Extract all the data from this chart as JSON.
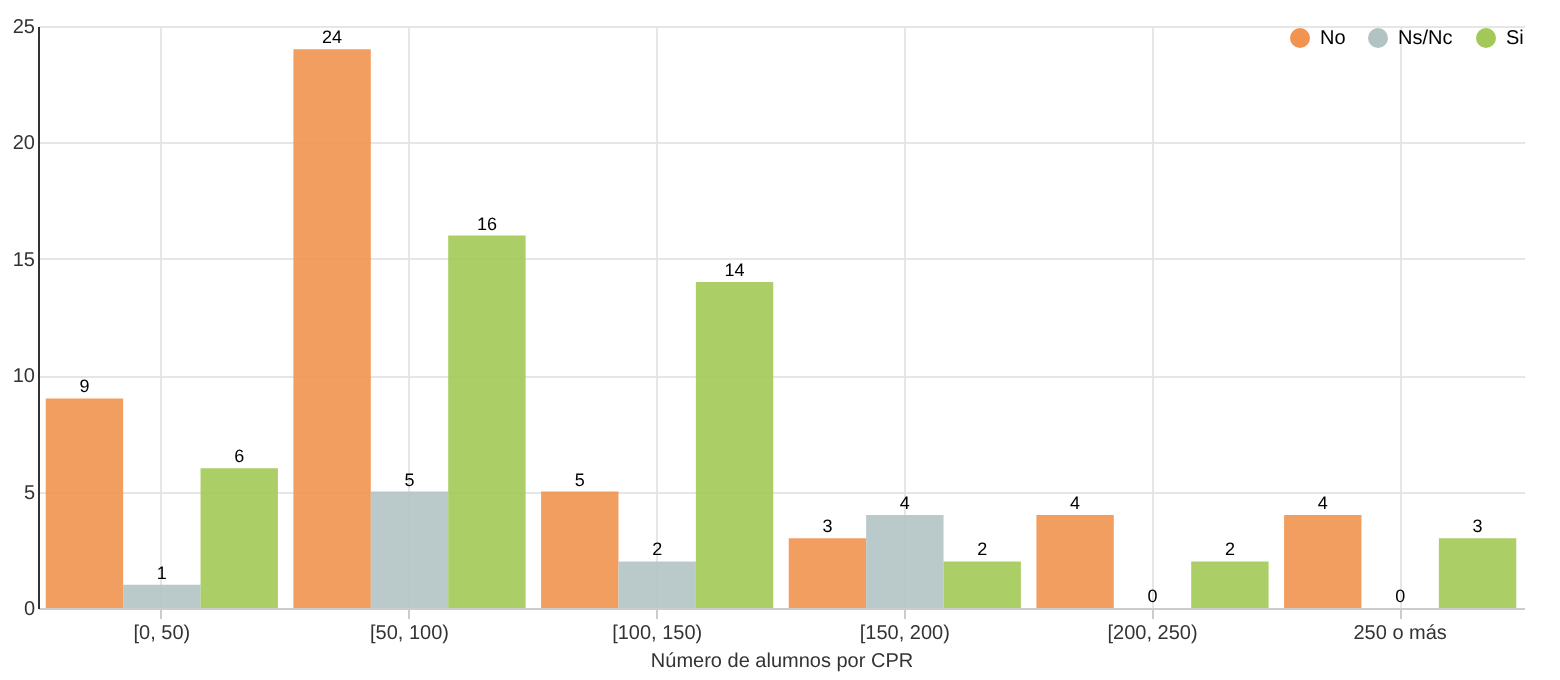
{
  "chart_data": {
    "type": "bar",
    "xlabel": "Número de alumnos por CPR",
    "categories": [
      "[0, 50)",
      "[50, 100)",
      "[100, 150)",
      "[150, 200)",
      "[200, 250)",
      "250 o más"
    ],
    "series": [
      {
        "name": "No",
        "color": "#f29450",
        "values": [
          9,
          24,
          5,
          3,
          4,
          4
        ]
      },
      {
        "name": "Ns/Nc",
        "color": "#b2c3c3",
        "values": [
          1,
          5,
          2,
          4,
          0,
          0
        ]
      },
      {
        "name": "Si",
        "color": "#a2c957",
        "values": [
          6,
          16,
          14,
          2,
          2,
          3
        ]
      }
    ],
    "ylim": [
      0,
      25
    ],
    "yticks": [
      0,
      5,
      10,
      15,
      20,
      25
    ],
    "grid": true,
    "legend": "top right",
    "data_labels": true
  }
}
